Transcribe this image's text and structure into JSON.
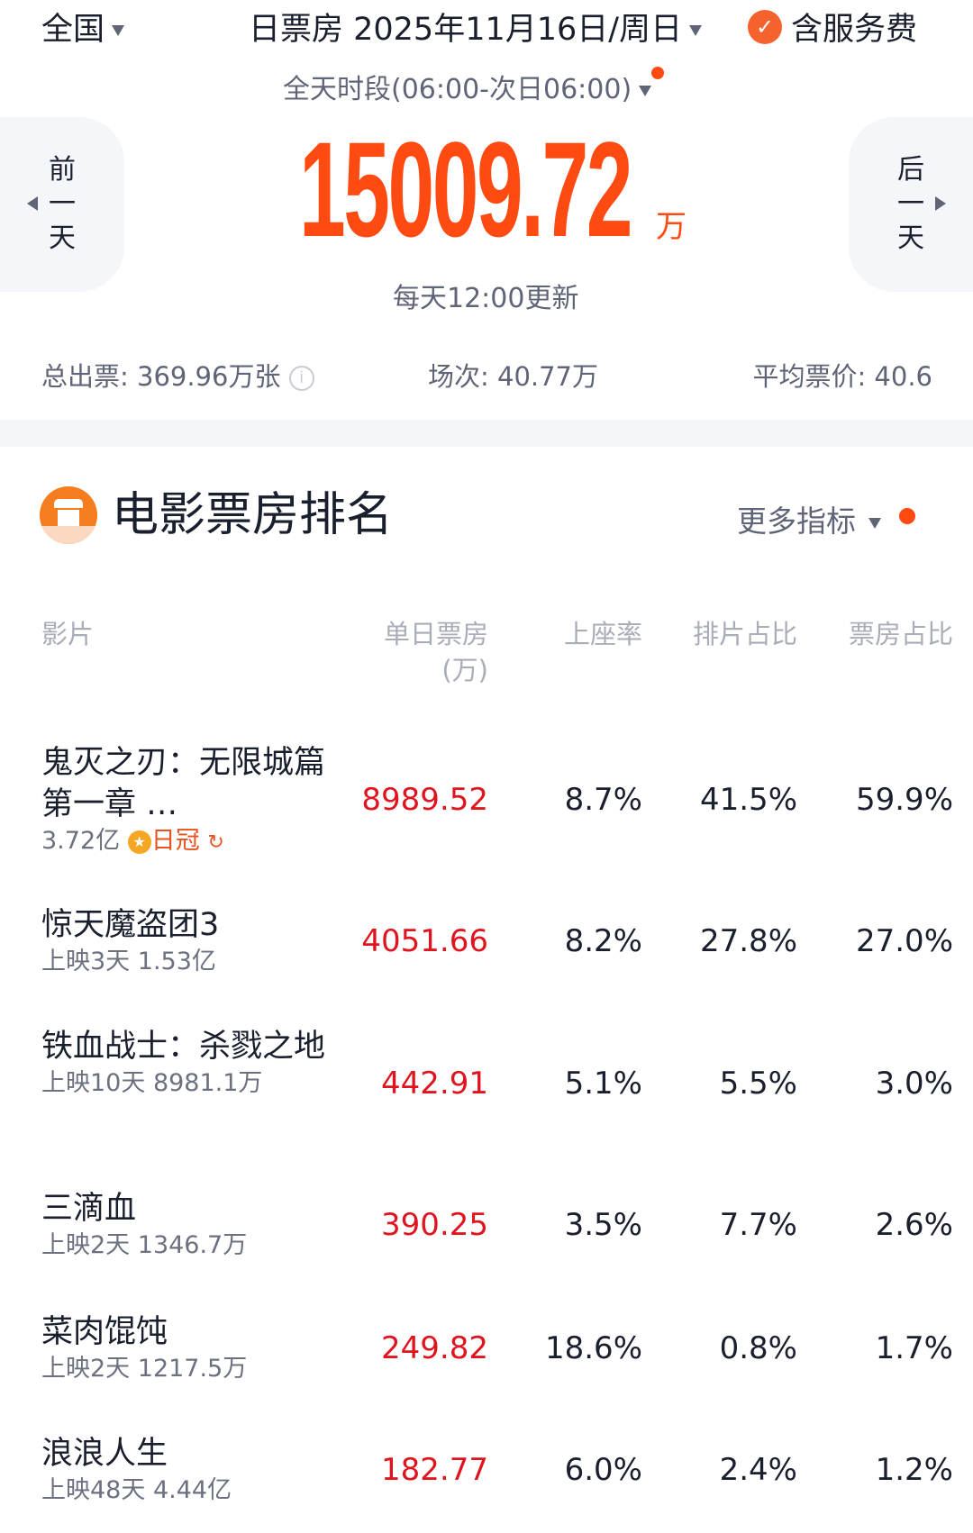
{
  "header": {
    "region": "全国",
    "date_label": "日票房 2025年11月16日/周日",
    "service_fee": "含服务费",
    "period": "全天时段(06:00-次日06:00)"
  },
  "nav": {
    "prev": [
      "前",
      "一",
      "天"
    ],
    "next": [
      "后",
      "一",
      "天"
    ]
  },
  "total": {
    "value": "15009.72",
    "unit": "万",
    "update_note": "每天12:00更新"
  },
  "stats": {
    "tickets": "总出票: 369.96万张",
    "shows": "场次: 40.77万",
    "avg_price": "平均票价: 40.6"
  },
  "section": {
    "title": "电影票房排名",
    "more": "更多指标"
  },
  "columns": {
    "film": "影片",
    "daily": "单日票房",
    "daily_unit": "(万)",
    "occupancy": "上座率",
    "schedule": "排片占比",
    "share": "票房占比"
  },
  "movies": [
    {
      "name": "鬼灭之刃：无限城篇 第一章 …",
      "sub": "3.72亿",
      "badge": "日冠",
      "daily": "8989.52",
      "occupancy": "8.7%",
      "schedule": "41.5%",
      "share": "59.9%"
    },
    {
      "name": "惊天魔盗团3",
      "sub": "上映3天 1.53亿",
      "daily": "4051.66",
      "occupancy": "8.2%",
      "schedule": "27.8%",
      "share": "27.0%"
    },
    {
      "name": "铁血战士：杀戮之地",
      "sub": "上映10天 8981.1万",
      "daily": "442.91",
      "occupancy": "5.1%",
      "schedule": "5.5%",
      "share": "3.0%"
    },
    {
      "name": "三滴血",
      "sub": "上映2天 1346.7万",
      "daily": "390.25",
      "occupancy": "3.5%",
      "schedule": "7.7%",
      "share": "2.6%"
    },
    {
      "name": "菜肉馄饨",
      "sub": "上映2天 1217.5万",
      "daily": "249.82",
      "occupancy": "18.6%",
      "schedule": "0.8%",
      "share": "1.7%"
    },
    {
      "name": "浪浪人生",
      "sub": "上映48天 4.44亿",
      "daily": "182.77",
      "occupancy": "6.0%",
      "schedule": "2.4%",
      "share": "1.2%"
    }
  ],
  "colors": {
    "accent": "#ff4a12",
    "daily": "#e0141e",
    "text": "#1a1f2e"
  }
}
